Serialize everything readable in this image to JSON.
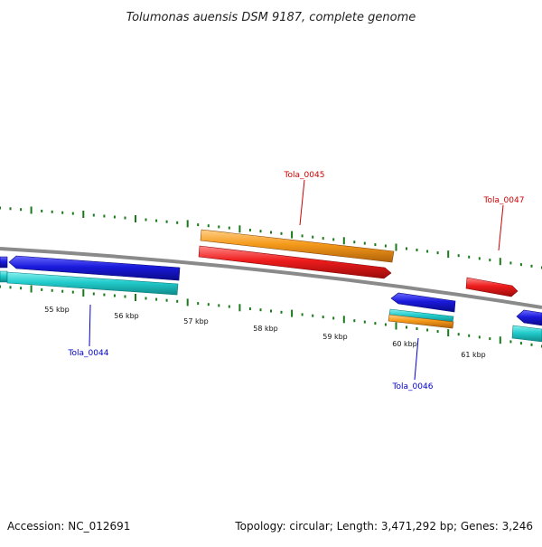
{
  "title": "Tolumonas auensis DSM 9187, complete genome",
  "footer": {
    "accession": "Accession: NC_012691",
    "summary": "Topology: circular; Length: 3,471,292 bp; Genes: 3,246"
  },
  "colors": {
    "backbone": "#7a7a7a",
    "tick": "#1a7a1a",
    "cds_blue": "#1a1adc",
    "cds_cyan": "#22cccc",
    "cds_orange": "#f59a1a",
    "cds_red": "#ee1c1c",
    "label_blue": "#0000cc",
    "label_red": "#cc0000"
  },
  "position_labels": [
    "55 kbp",
    "56 kbp",
    "57 kbp",
    "58 kbp",
    "59 kbp",
    "60 kbp",
    "61 kbp"
  ],
  "gene_labels": [
    {
      "id": "tola-0044",
      "text": "Tola_0044",
      "color": "blue"
    },
    {
      "id": "tola-0045",
      "text": "Tola_0045",
      "color": "red"
    },
    {
      "id": "tola-0046",
      "text": "Tola_0046",
      "color": "blue"
    },
    {
      "id": "tola-0047",
      "text": "Tola_0047",
      "color": "red"
    }
  ]
}
